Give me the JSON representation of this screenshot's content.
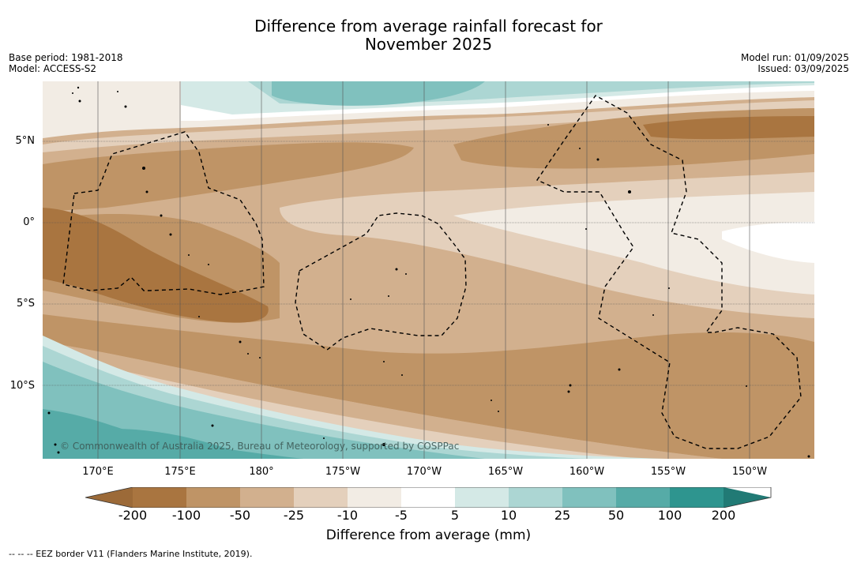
{
  "title": {
    "line1": "Difference from average rainfall forecast for",
    "line2": "November 2025"
  },
  "meta": {
    "base_period": "Base period: 1981-2018",
    "model": "Model: ACCESS-S2",
    "model_run": "Model run: 01/09/2025",
    "issued": "Issued: 03/09/2025"
  },
  "map": {
    "lat_labels": [
      "5°N",
      "0°",
      "5°S",
      "10°S"
    ],
    "lon_labels": [
      "170°E",
      "175°E",
      "180°",
      "175°W",
      "170°W",
      "165°W",
      "160°W",
      "155°W",
      "150°W"
    ],
    "copyright": "© Commonwealth of Australia 2025, Bureau of Meteorology, supported by COSPPac",
    "colors": {
      "dry_200": "#a97540",
      "dry_100": "#bf9466",
      "dry_50": "#d2b08e",
      "dry_25": "#e4d0bc",
      "dry_10": "#f2ece4",
      "neutral": "#ffffff",
      "wet_5": "#d4e9e6",
      "wet_10": "#acd6d3",
      "wet_25": "#80c1be",
      "wet_50": "#56aba7",
      "wet_100": "#2e958f"
    }
  },
  "colorbar": {
    "ticks": [
      "-200",
      "-100",
      "-50",
      "-25",
      "-10",
      "-5",
      "5",
      "10",
      "25",
      "50",
      "100",
      "200"
    ],
    "colors": [
      "#9c6a38",
      "#a97540",
      "#bf9466",
      "#d2b08e",
      "#e4d0bc",
      "#f2ece4",
      "#ffffff",
      "#d4e9e6",
      "#acd6d3",
      "#80c1be",
      "#56aba7",
      "#2e958f",
      "#217a75"
    ],
    "label": "Difference from average (mm)"
  },
  "footer": "--  --  -- EEZ border V11 (Flanders Marine Institute, 2019)."
}
